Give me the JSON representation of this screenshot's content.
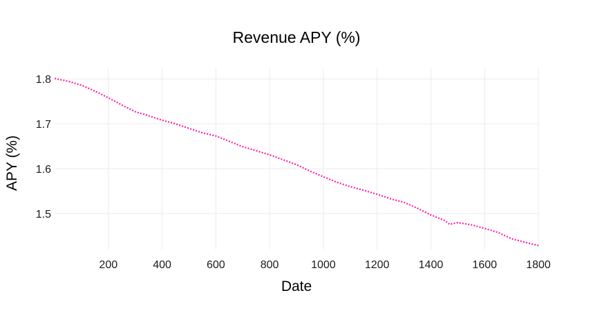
{
  "chart_data": {
    "type": "line",
    "title": "Revenue APY (%)",
    "xlabel": "Date",
    "ylabel": "APY (%)",
    "xlim": [
      0,
      1800
    ],
    "ylim": [
      1.42,
      1.825
    ],
    "x_ticks": [
      200,
      400,
      600,
      800,
      1000,
      1200,
      1400,
      1600,
      1800
    ],
    "y_ticks": [
      1.5,
      1.6,
      1.7,
      1.8
    ],
    "x_tick_labels": [
      "200",
      "400",
      "600",
      "800",
      "1000",
      "1200",
      "1400",
      "1600",
      "1800"
    ],
    "y_tick_labels": [
      "1.5",
      "1.6",
      "1.7",
      "1.8"
    ],
    "grid": true,
    "legend": "none",
    "series": [
      {
        "line_style": "dotted",
        "color": "#ff1aa8",
        "points": [
          [
            0,
            1.801
          ],
          [
            50,
            1.795
          ],
          [
            100,
            1.786
          ],
          [
            150,
            1.773
          ],
          [
            200,
            1.758
          ],
          [
            250,
            1.742
          ],
          [
            300,
            1.727
          ],
          [
            350,
            1.718
          ],
          [
            400,
            1.708
          ],
          [
            450,
            1.7
          ],
          [
            500,
            1.69
          ],
          [
            550,
            1.68
          ],
          [
            600,
            1.673
          ],
          [
            650,
            1.661
          ],
          [
            700,
            1.649
          ],
          [
            750,
            1.64
          ],
          [
            800,
            1.631
          ],
          [
            850,
            1.62
          ],
          [
            900,
            1.609
          ],
          [
            950,
            1.595
          ],
          [
            1000,
            1.582
          ],
          [
            1050,
            1.57
          ],
          [
            1100,
            1.56
          ],
          [
            1150,
            1.552
          ],
          [
            1200,
            1.543
          ],
          [
            1250,
            1.533
          ],
          [
            1300,
            1.525
          ],
          [
            1350,
            1.512
          ],
          [
            1400,
            1.497
          ],
          [
            1450,
            1.485
          ],
          [
            1470,
            1.476
          ],
          [
            1500,
            1.48
          ],
          [
            1550,
            1.475
          ],
          [
            1600,
            1.467
          ],
          [
            1650,
            1.458
          ],
          [
            1700,
            1.444
          ],
          [
            1750,
            1.436
          ],
          [
            1800,
            1.429
          ]
        ]
      }
    ]
  }
}
